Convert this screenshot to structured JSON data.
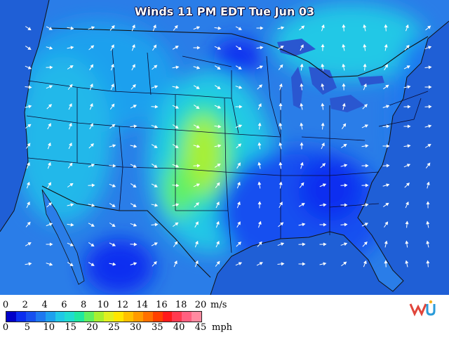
{
  "map": {
    "title": "Winds 11 PM EDT Tue Jun 03",
    "colors": {
      "ocean": "#1f5fd6",
      "lake": "#2a57d0",
      "land_base": "#2a7de8"
    }
  },
  "legend": {
    "ms_ticks": [
      "0",
      "2",
      "4",
      "6",
      "8",
      "10",
      "12",
      "14",
      "16",
      "18",
      "20"
    ],
    "ms_unit": "m/s",
    "mph_ticks": [
      "0",
      "5",
      "10",
      "15",
      "20",
      "25",
      "30",
      "35",
      "40",
      "45"
    ],
    "mph_unit": "mph",
    "colors": [
      "#0000c8",
      "#0a2ef0",
      "#1650f0",
      "#1e78f0",
      "#1ea0ee",
      "#20c8e6",
      "#20dcd0",
      "#20e8a0",
      "#60f060",
      "#a8f030",
      "#e0f020",
      "#ffe600",
      "#ffc000",
      "#ff9a00",
      "#ff7000",
      "#ff4000",
      "#ff1a1a",
      "#ff3a50",
      "#ff6080",
      "#ff8aa0"
    ]
  },
  "logo": {
    "name": "wu-logo-icon"
  }
}
